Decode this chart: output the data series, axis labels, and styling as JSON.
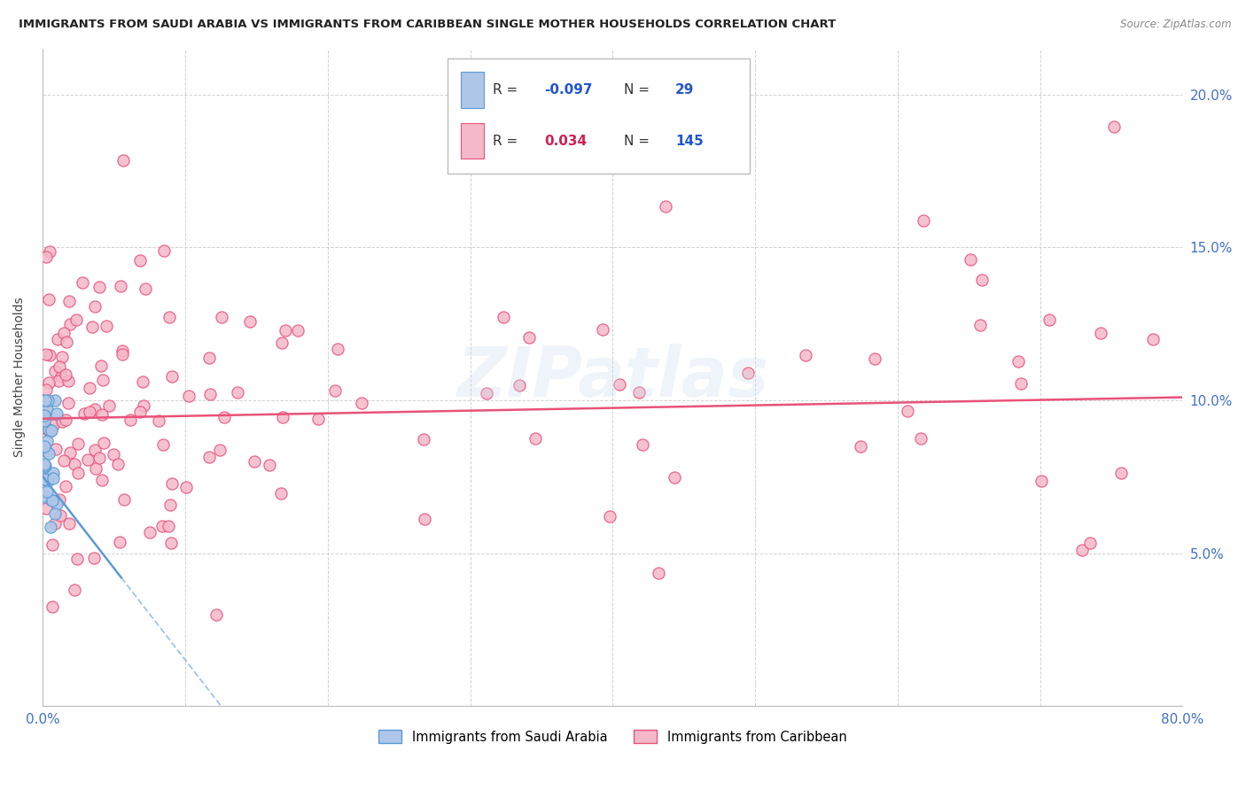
{
  "title": "IMMIGRANTS FROM SAUDI ARABIA VS IMMIGRANTS FROM CARIBBEAN SINGLE MOTHER HOUSEHOLDS CORRELATION CHART",
  "source": "Source: ZipAtlas.com",
  "ylabel": "Single Mother Households",
  "y_ticks": [
    0.0,
    0.05,
    0.1,
    0.15,
    0.2
  ],
  "y_tick_labels": [
    "",
    "5.0%",
    "10.0%",
    "15.0%",
    "20.0%"
  ],
  "axis_label_color": "#4472c4",
  "saudi_color": "#aec6e8",
  "saudi_edge_color": "#5b9bd5",
  "caribbean_color": "#f4b8c8",
  "caribbean_edge_color": "#e8527a",
  "trend_saudi_color": "#5b9bd5",
  "trend_caribbean_color": "#e8527a",
  "watermark": "ZIPatlas",
  "title_color": "#222222",
  "legend_R_saudi_color": "#2255cc",
  "legend_R_carib_color": "#cc2255",
  "legend_N_color": "#2255cc",
  "saudi_label": "Immigrants from Saudi Arabia",
  "caribbean_label": "Immigrants from Caribbean",
  "saudi_R": "-0.097",
  "saudi_N": "29",
  "carib_R": "0.034",
  "carib_N": "145"
}
